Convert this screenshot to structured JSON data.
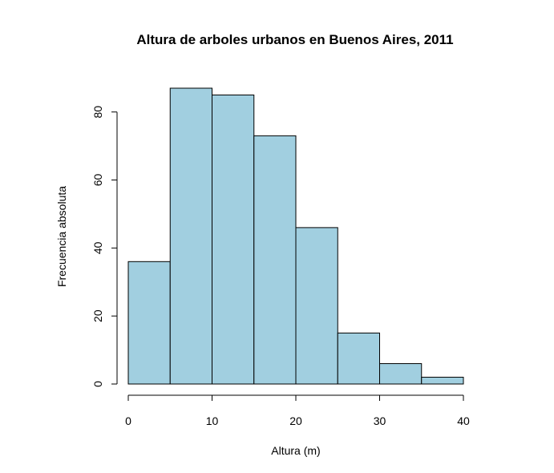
{
  "chart_data": {
    "type": "bar",
    "subtype": "histogram",
    "title": "Altura de arboles urbanos en Buenos Aires, 2011",
    "xlabel": "Altura (m)",
    "ylabel": "Frecuencia absoluta",
    "bins": [
      {
        "from": 0,
        "to": 5,
        "value": 36
      },
      {
        "from": 5,
        "to": 10,
        "value": 87
      },
      {
        "from": 10,
        "to": 15,
        "value": 85
      },
      {
        "from": 15,
        "to": 20,
        "value": 73
      },
      {
        "from": 20,
        "to": 25,
        "value": 46
      },
      {
        "from": 25,
        "to": 30,
        "value": 15
      },
      {
        "from": 30,
        "to": 35,
        "value": 6
      },
      {
        "from": 35,
        "to": 40,
        "value": 2
      }
    ],
    "xlim": [
      0,
      40
    ],
    "ylim": [
      0,
      87
    ],
    "xticks": [
      0,
      10,
      20,
      30,
      40
    ],
    "yticks": [
      0,
      20,
      40,
      60,
      80
    ],
    "bar_color": "#A1CFE0",
    "bar_border_color": "#000000",
    "grid": false,
    "legend": "none"
  }
}
